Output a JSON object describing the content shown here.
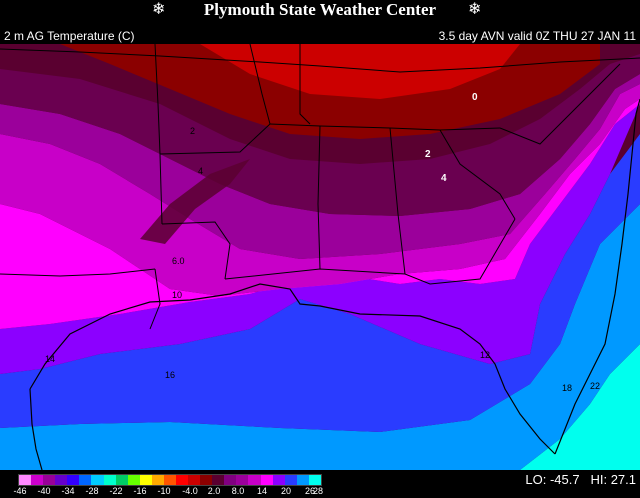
{
  "header": {
    "title": "Plymouth State Weather Center",
    "subtitle_left": "2 m AG Temperature (C)",
    "subtitle_right": "3.5 day AVN valid 0Z THU 27 JAN 11"
  },
  "legend": {
    "colors": [
      "#ff88ff",
      "#cc00cc",
      "#990099",
      "#6600cc",
      "#3300ff",
      "#0066ff",
      "#00ccff",
      "#00ffcc",
      "#00cc66",
      "#66ff00",
      "#ffff00",
      "#ffaa00",
      "#ff5500",
      "#ff0000",
      "#cc0000",
      "#8b0000",
      "#5a0030",
      "#800080",
      "#9b009b",
      "#c800c8",
      "#ff00ff",
      "#8c00ff",
      "#2a3cff",
      "#0099ff",
      "#00ffee"
    ],
    "ticks": [
      "-46",
      "-40",
      "-34",
      "-28",
      "-22",
      "-16",
      "-10",
      "-4.0",
      "2.0",
      "8.0",
      "14",
      "20",
      "26",
      "28"
    ]
  },
  "stats": {
    "lo_label": "LO:",
    "lo_value": "-45.7",
    "hi_label": "HI:",
    "hi_value": "27.1"
  },
  "map_labels": {
    "l_0": "0",
    "l_2": "2",
    "l_4": "4",
    "l_6": "6.0",
    "l_10": "10",
    "l_12": "12",
    "l_14": "14",
    "l_16": "16",
    "l_18": "18",
    "l_22": "22",
    "l_2ne": "2",
    "l_4w": "4"
  }
}
